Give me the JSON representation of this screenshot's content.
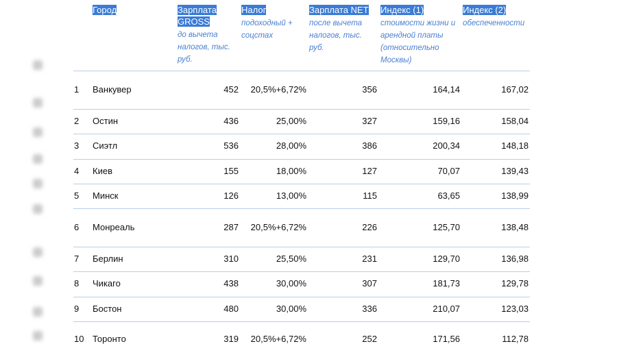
{
  "headers": [
    {
      "title": "Город",
      "sub": ""
    },
    {
      "title": "Зарплата GROSS",
      "sub": "до вычета налогов, тыс. руб."
    },
    {
      "title": "Налог",
      "sub": "подоходный + соцстах"
    },
    {
      "title": "Зарплата NET",
      "sub": "после вычета налогов, тыс. руб."
    },
    {
      "title": "Индекс (1)",
      "sub": "стоимости жизни и арендной платы (относительно Москвы)"
    },
    {
      "title": "Индекс (2)",
      "sub": "обеспеченности"
    }
  ],
  "rows": [
    [
      "1",
      "Ванкувер",
      "452",
      "20,5%+6,72%",
      "356",
      "164,14",
      "167,02"
    ],
    [
      "2",
      "Остин",
      "436",
      "25,00%",
      "327",
      "159,16",
      "158,04"
    ],
    [
      "3",
      "Сиэтл",
      "536",
      "28,00%",
      "386",
      "200,34",
      "148,18"
    ],
    [
      "4",
      "Киев",
      "155",
      "18,00%",
      "127",
      "70,07",
      "139,43"
    ],
    [
      "5",
      "Минск",
      "126",
      "13,00%",
      "115",
      "63,65",
      "138,99"
    ],
    [
      "6",
      "Монреаль",
      "287",
      "20,5%+6,72%",
      "226",
      "125,70",
      "138,48"
    ],
    [
      "7",
      "Берлин",
      "310",
      "25,50%",
      "231",
      "129,70",
      "136,98"
    ],
    [
      "8",
      "Чикаго",
      "438",
      "30,00%",
      "307",
      "181,73",
      "129,78"
    ],
    [
      "9",
      "Бостон",
      "480",
      "30,00%",
      "336",
      "210,07",
      "123,03"
    ],
    [
      "10",
      "Торонто",
      "319",
      "20,5%+6,72%",
      "252",
      "171,56",
      "112,78"
    ]
  ]
}
